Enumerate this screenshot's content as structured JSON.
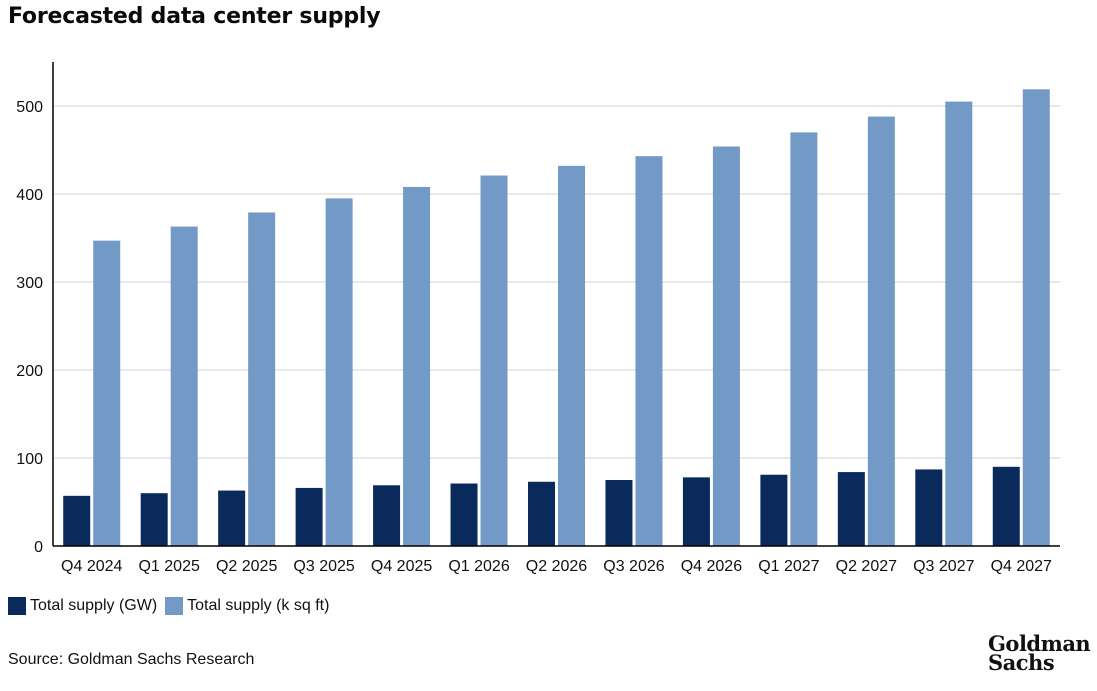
{
  "title": "Forecasted data center supply",
  "source": "Source: Goldman Sachs Research",
  "logo": {
    "line1": "Goldman",
    "line2": "Sachs"
  },
  "colors": {
    "series_gw": "#0b2a5c",
    "series_sqft": "#7399c6",
    "grid": "#d0d0d0",
    "axis": "#000000"
  },
  "legend": [
    {
      "label": "Total supply (GW)",
      "color": "#0b2a5c"
    },
    {
      "label": "Total supply (k sq ft)",
      "color": "#7399c6"
    }
  ],
  "chart_data": {
    "type": "bar",
    "title": "Forecasted data center supply",
    "xlabel": "",
    "ylabel": "",
    "ylim": [
      0,
      550
    ],
    "yticks": [
      0,
      100,
      200,
      300,
      400,
      500
    ],
    "grid": true,
    "legend_position": "bottom-left",
    "categories": [
      "Q4 2024",
      "Q1 2025",
      "Q2 2025",
      "Q3 2025",
      "Q4 2025",
      "Q1 2026",
      "Q2 2026",
      "Q3 2026",
      "Q4 2026",
      "Q1 2027",
      "Q2 2027",
      "Q3 2027",
      "Q4 2027"
    ],
    "series": [
      {
        "name": "Total supply (GW)",
        "color": "#0b2a5c",
        "values": [
          57,
          60,
          63,
          66,
          69,
          71,
          73,
          75,
          78,
          81,
          84,
          87,
          90
        ]
      },
      {
        "name": "Total supply (k sq ft)",
        "color": "#7399c6",
        "values": [
          347,
          363,
          379,
          395,
          408,
          421,
          432,
          443,
          454,
          470,
          488,
          505,
          519
        ]
      }
    ]
  }
}
